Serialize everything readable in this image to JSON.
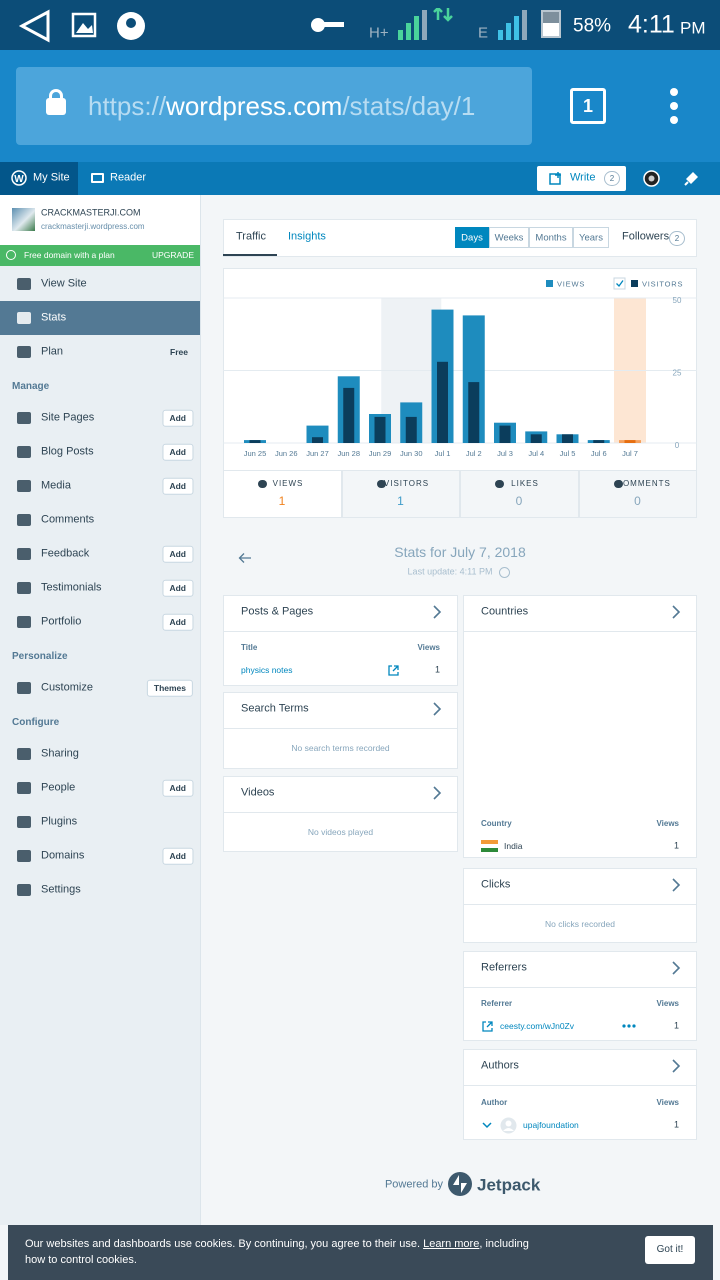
{
  "status_bar": {
    "network_1": "H+",
    "network_2": "E",
    "battery": "58%",
    "time": "4:11",
    "ampm": "PM"
  },
  "browser": {
    "url_scheme": "https://",
    "url_host": "wordpress.com",
    "url_path": "/stats/day/1",
    "tabs": "1"
  },
  "masterbar": {
    "my_site": "My Site",
    "reader": "Reader",
    "write": "Write",
    "write_count": "2"
  },
  "sidebar": {
    "site_name": "CRACKMASTERJI.COM",
    "site_url": "crackmasterji.wordpress.com",
    "banner": "Free domain with a plan",
    "upgrade": "UPGRADE",
    "menu": [
      {
        "label": "View Site"
      },
      {
        "label": "Stats"
      },
      {
        "label": "Plan",
        "badge": "Free"
      },
      {
        "heading": "Manage"
      },
      {
        "label": "Site Pages",
        "badge": "Add"
      },
      {
        "label": "Blog Posts",
        "badge": "Add"
      },
      {
        "label": "Media",
        "badge": "Add"
      },
      {
        "label": "Comments"
      },
      {
        "label": "Feedback",
        "badge": "Add"
      },
      {
        "label": "Testimonials",
        "badge": "Add"
      },
      {
        "label": "Portfolio",
        "badge": "Add"
      },
      {
        "heading": "Personalize"
      },
      {
        "label": "Customize",
        "badge": "Themes"
      },
      {
        "heading": "Configure"
      },
      {
        "label": "Sharing"
      },
      {
        "label": "People",
        "badge": "Add"
      },
      {
        "label": "Plugins"
      },
      {
        "label": "Domains",
        "badge": "Add"
      },
      {
        "label": "Settings"
      }
    ]
  },
  "stats_nav": {
    "tabs": [
      "Traffic",
      "Insights"
    ],
    "periods": [
      "Days",
      "Weeks",
      "Months",
      "Years"
    ],
    "followers": "Followers",
    "followers_count": "2"
  },
  "chart_data": {
    "type": "bar",
    "categories": [
      "Jun 25",
      "Jun 26",
      "Jun 27",
      "Jun 28",
      "Jun 29",
      "Jun 30",
      "Jul 1",
      "Jul 2",
      "Jul 3",
      "Jul 4",
      "Jul 5",
      "Jul 6",
      "Jul 7"
    ],
    "series": [
      {
        "name": "VIEWS",
        "color": "#1e8cbe",
        "values": [
          1,
          0,
          6,
          23,
          10,
          14,
          46,
          44,
          7,
          4,
          3,
          1,
          1
        ]
      },
      {
        "name": "VISITORS",
        "color": "#0b3d5c",
        "values": [
          1,
          0,
          2,
          19,
          9,
          9,
          28,
          21,
          6,
          3,
          3,
          1,
          1
        ]
      }
    ],
    "ylim": [
      0,
      50
    ],
    "yticks": [
      0,
      25,
      50
    ],
    "grid": true
  },
  "summary": [
    {
      "label": "VIEWS",
      "value": "1"
    },
    {
      "label": "VISITORS",
      "value": "1"
    },
    {
      "label": "LIKES",
      "value": "0"
    },
    {
      "label": "COMMENTS",
      "value": "0"
    }
  ],
  "heading": {
    "title": "Stats for July 7, 2018",
    "last_update": "Last update: 4:11 PM"
  },
  "modules": {
    "posts": {
      "title": "Posts & Pages",
      "columns": [
        "Title",
        "Views"
      ],
      "rows": [
        [
          "physics notes",
          "1"
        ]
      ]
    },
    "search": {
      "title": "Search Terms",
      "empty": "No search terms recorded"
    },
    "videos": {
      "title": "Videos",
      "empty": "No videos played"
    },
    "countries": {
      "title": "Countries",
      "columns": [
        "Country",
        "Views"
      ],
      "rows": [
        [
          "India",
          "1"
        ]
      ]
    },
    "clicks": {
      "title": "Clicks",
      "empty": "No clicks recorded"
    },
    "referrers": {
      "title": "Referrers",
      "columns": [
        "Referrer",
        "Views"
      ],
      "rows": [
        [
          "ceesty.com/wJn0Zv",
          "1"
        ]
      ]
    },
    "authors": {
      "title": "Authors",
      "columns": [
        "Author",
        "Views"
      ],
      "rows": [
        [
          "upajfoundation",
          "1"
        ]
      ]
    }
  },
  "footer": {
    "powered_by": "Powered by",
    "brand": "Jetpack"
  },
  "cookie": {
    "text": "Our websites and dashboards use cookies. By continuing, you agree to their use. ",
    "link": "Learn more",
    "text_end": ", including how to control cookies.",
    "button": "Got it!"
  }
}
